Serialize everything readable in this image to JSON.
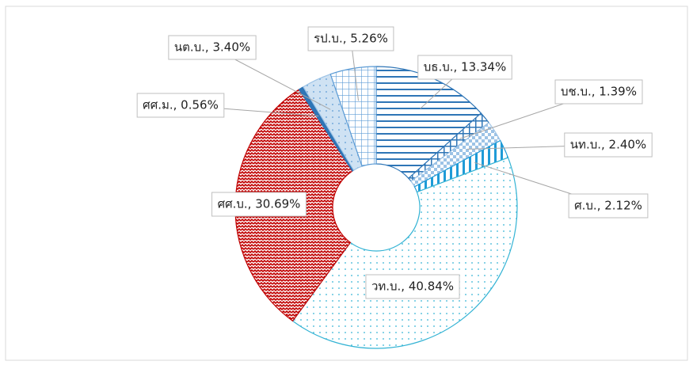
{
  "chart_data": {
    "type": "donut",
    "values": [
      13.34,
      1.39,
      2.4,
      2.12,
      40.84,
      30.69,
      0.56,
      3.4,
      5.26
    ],
    "value_labels": [
      "บธ.บ., 13.34%",
      "บช.บ., 1.39%",
      "นท.บ., 2.40%",
      "ศ.บ., 2.12%",
      "วท.บ., 40.84%",
      "ศศ.บ., 30.69%",
      "ศศ.ม., 0.56%",
      "นต.บ., 3.40%",
      "รป.บ., 5.26%"
    ],
    "colors": [
      "#2e75b6",
      "#2e75b6",
      "#9dc3e6",
      "#1f9bd7",
      "#33b3d4",
      "#c00000",
      "#2e75b6",
      "#9dc3e6",
      "#5b9bd5"
    ]
  }
}
